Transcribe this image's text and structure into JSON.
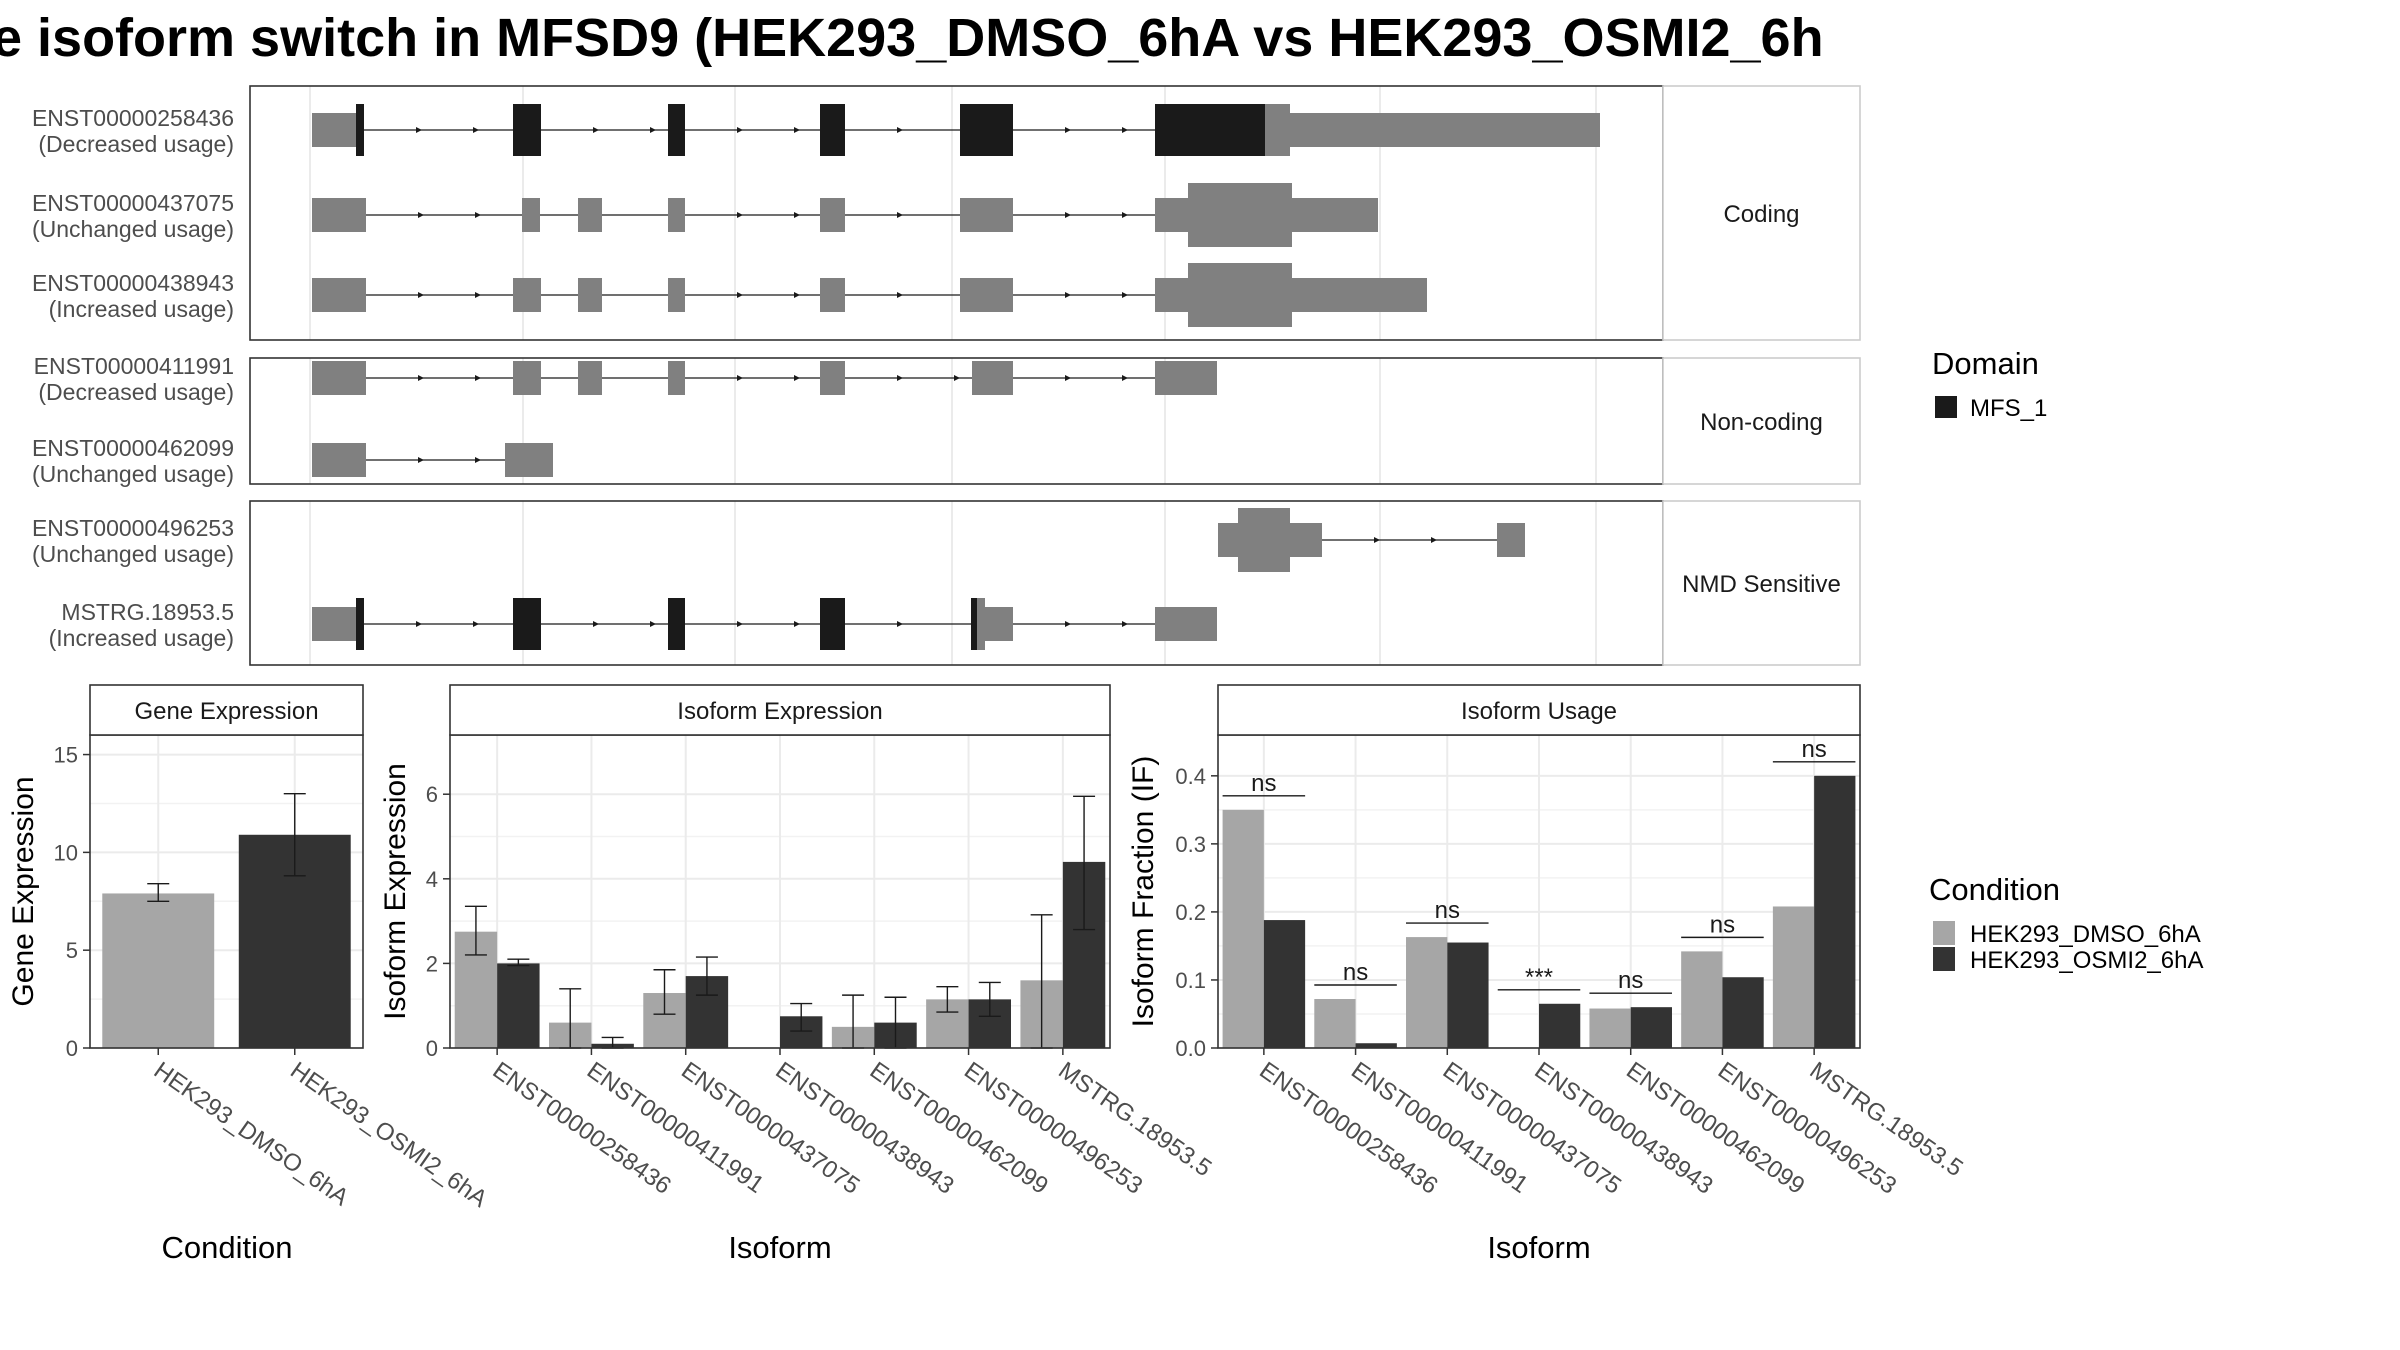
{
  "title": "e isoform switch in MFSD9 (HEK293_DMSO_6hA vs HEK293_OSMI2_6h",
  "colors": {
    "domain": "#1a1a1a",
    "exon": "#808080",
    "dmso": "#a6a6a6",
    "osmi": "#333333",
    "panel_strip": "#ffffff",
    "grid": "#ebebeb"
  },
  "transcript_panels": [
    {
      "label": "Coding",
      "transcripts": [
        {
          "id": "ENST00000258436",
          "usage": "(Decreased usage)"
        },
        {
          "id": "ENST00000437075",
          "usage": "(Unchanged usage)"
        },
        {
          "id": "ENST00000438943",
          "usage": "(Increased usage)"
        }
      ]
    },
    {
      "label": "Non-coding",
      "transcripts": [
        {
          "id": "ENST00000411991",
          "usage": "(Decreased usage)"
        },
        {
          "id": "ENST00000462099",
          "usage": "(Unchanged usage)"
        }
      ]
    },
    {
      "label": "NMD Sensitive",
      "transcripts": [
        {
          "id": "ENST00000496253",
          "usage": "(Unchanged usage)"
        },
        {
          "id": "MSTRG.18953.5",
          "usage": "(Increased usage)"
        }
      ]
    }
  ],
  "domain_legend": {
    "title": "Domain",
    "items": [
      "MFS_1"
    ]
  },
  "condition_legend": {
    "title": "Condition",
    "items": [
      "HEK293_DMSO_6hA",
      "HEK293_OSMI2_6hA"
    ]
  },
  "chart_data": [
    {
      "type": "bar",
      "title": "Gene Expression",
      "xlabel": "Condition",
      "ylabel": "Gene Expression",
      "ylim": [
        0,
        16
      ],
      "yticks": [
        0,
        5,
        10,
        15
      ],
      "categories": [
        "HEK293_DMSO_6hA",
        "HEK293_OSMI2_6hA"
      ],
      "values": [
        7.9,
        10.9
      ],
      "error_low": [
        7.5,
        8.8
      ],
      "error_high": [
        8.4,
        13.0
      ]
    },
    {
      "type": "bar",
      "title": "Isoform Expression",
      "xlabel": "Isoform",
      "ylabel": "Isoform Expression",
      "ylim": [
        0,
        7.4
      ],
      "yticks": [
        0,
        2,
        4,
        6
      ],
      "categories": [
        "ENST00000258436",
        "ENST00000411991",
        "ENST00000437075",
        "ENST00000438943",
        "ENST00000462099",
        "ENST00000496253",
        "MSTRG.18953.5"
      ],
      "series": [
        {
          "name": "HEK293_DMSO_6hA",
          "values": [
            2.75,
            0.6,
            1.3,
            0.0,
            0.5,
            1.15,
            1.6
          ],
          "error_low": [
            2.2,
            0.0,
            0.8,
            0.0,
            0.0,
            0.85,
            0.0
          ],
          "error_high": [
            3.35,
            1.4,
            1.85,
            0.0,
            1.25,
            1.45,
            3.15
          ]
        },
        {
          "name": "HEK293_OSMI2_6hA",
          "values": [
            2.0,
            0.1,
            1.7,
            0.75,
            0.6,
            1.15,
            4.4
          ],
          "error_low": [
            1.95,
            0.0,
            1.25,
            0.4,
            0.0,
            0.75,
            2.8
          ],
          "error_high": [
            2.1,
            0.25,
            2.15,
            1.05,
            1.2,
            1.55,
            5.95
          ]
        }
      ]
    },
    {
      "type": "bar",
      "title": "Isoform Usage",
      "xlabel": "Isoform",
      "ylabel": "Isoform Fraction (IF)",
      "ylim": [
        0,
        0.46
      ],
      "yticks": [
        0.0,
        0.1,
        0.2,
        0.3,
        0.4
      ],
      "ytick_labels": [
        "0.0",
        "0.1",
        "0.2",
        "0.3",
        "0.4"
      ],
      "categories": [
        "ENST00000258436",
        "ENST00000411991",
        "ENST00000437075",
        "ENST00000438943",
        "ENST00000462099",
        "ENST00000496253",
        "MSTRG.18953.5"
      ],
      "series": [
        {
          "name": "HEK293_DMSO_6hA",
          "values": [
            0.35,
            0.072,
            0.163,
            0.0,
            0.058,
            0.142,
            0.208
          ]
        },
        {
          "name": "HEK293_OSMI2_6hA",
          "values": [
            0.188,
            0.007,
            0.155,
            0.065,
            0.06,
            0.104,
            0.4
          ]
        }
      ],
      "significance": [
        "ns",
        "ns",
        "ns",
        "***",
        "ns",
        "ns",
        "ns"
      ]
    }
  ]
}
